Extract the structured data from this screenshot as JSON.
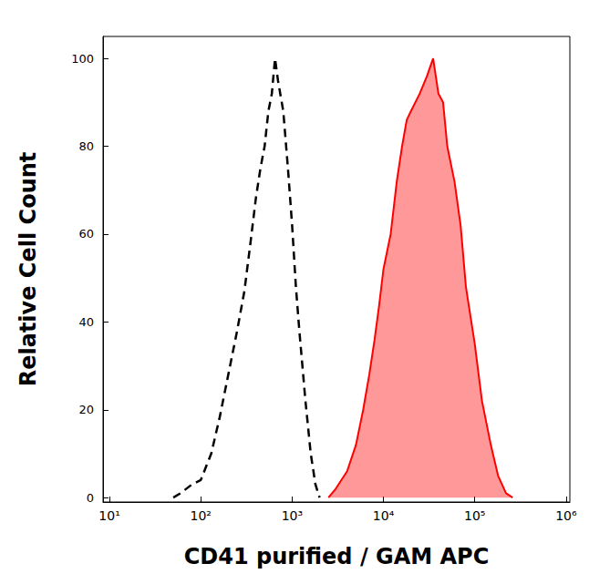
{
  "chart_data": {
    "type": "line",
    "x_label": "CD41 purified / GAM APC",
    "y_label": "Relative Cell Count",
    "log": "x",
    "grid": false,
    "xlim": [
      8.5,
      1100000
    ],
    "xticks": [
      {
        "value": 10,
        "label": "10¹"
      },
      {
        "value": 100,
        "label": "10²"
      },
      {
        "value": 1000,
        "label": "10³"
      },
      {
        "value": 10000,
        "label": "10⁴"
      },
      {
        "value": 100000,
        "label": "10⁵"
      },
      {
        "value": 1000000,
        "label": "10⁶"
      }
    ],
    "ylim": [
      -1,
      105
    ],
    "yticks": [
      0,
      20,
      40,
      60,
      80,
      100
    ],
    "series": [
      {
        "type": "line",
        "color": "#000000",
        "line_style": "dashed",
        "x": [
          50,
          60,
          80,
          100,
          130,
          160,
          200,
          250,
          300,
          350,
          400,
          450,
          500,
          550,
          600,
          650,
          700,
          800,
          900,
          1000,
          1100,
          1200,
          1400,
          1600,
          1800,
          2000
        ],
        "values": [
          0,
          1,
          3,
          4,
          10,
          18,
          28,
          38,
          47,
          58,
          68,
          75,
          80,
          88,
          92,
          100,
          95,
          88,
          75,
          62,
          48,
          38,
          22,
          10,
          3,
          0
        ]
      },
      {
        "type": "area",
        "color": "#ff0000",
        "line_style": "solid",
        "x": [
          2500,
          3000,
          4000,
          5000,
          6000,
          7000,
          8000,
          9000,
          10000,
          12000,
          14000,
          16000,
          18000,
          20000,
          25000,
          30000,
          35000,
          40000,
          45000,
          50000,
          60000,
          70000,
          80000,
          100000,
          120000,
          150000,
          180000,
          220000,
          260000
        ],
        "values": [
          0,
          2,
          6,
          12,
          20,
          28,
          36,
          44,
          52,
          60,
          72,
          80,
          86,
          88,
          92,
          96,
          100,
          92,
          90,
          80,
          72,
          62,
          48,
          35,
          22,
          12,
          5,
          1,
          0
        ]
      }
    ]
  }
}
